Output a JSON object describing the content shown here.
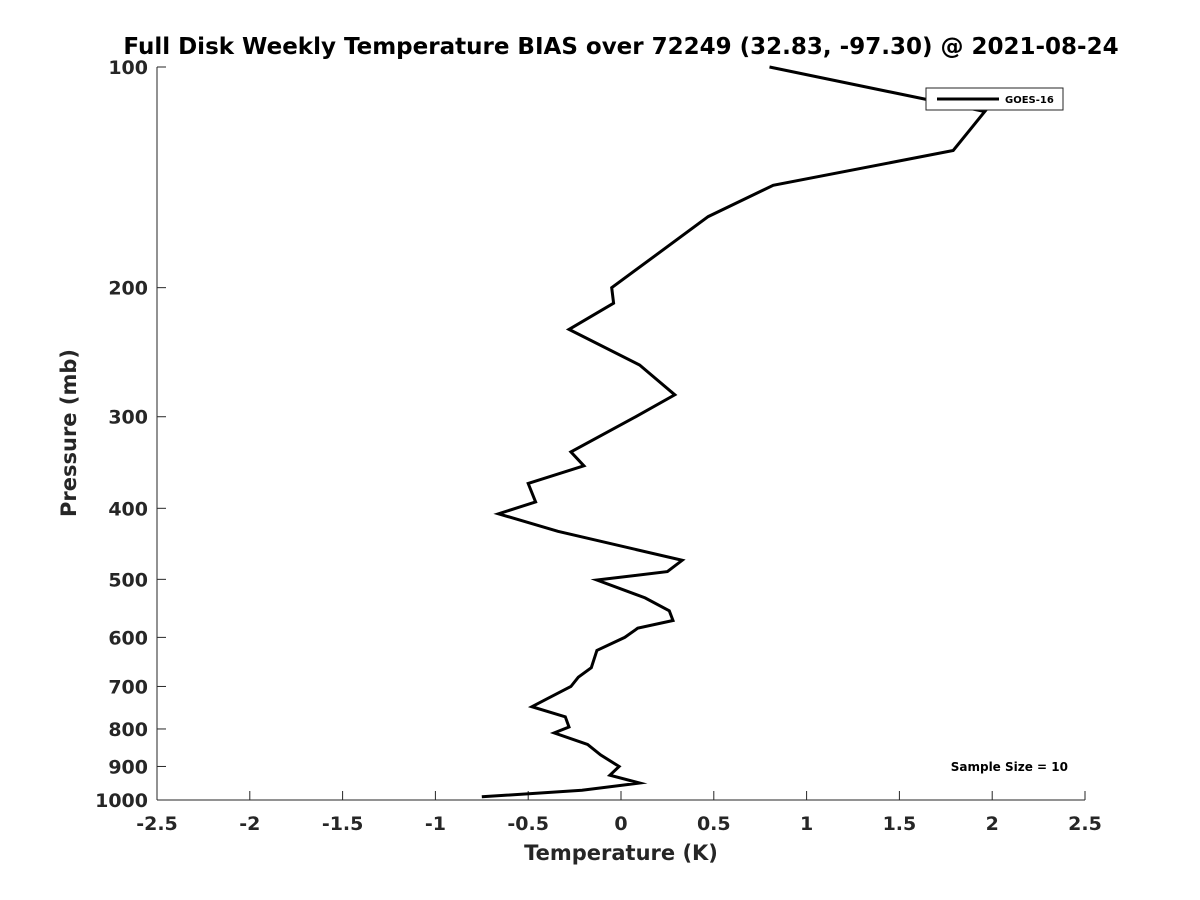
{
  "chart_data": {
    "type": "line",
    "title": "Full Disk Weekly Temperature BIAS over 72249 (32.83, -97.30) @ 2021-08-24",
    "xlabel": "Temperature (K)",
    "ylabel": "Pressure (mb)",
    "xlim": [
      -2.5,
      2.5
    ],
    "ylim": [
      100,
      1000
    ],
    "y_scale": "log",
    "y_reversed": true,
    "xticks": [
      "-2.5",
      "-2",
      "-1.5",
      "-1",
      "-0.5",
      "0",
      "0.5",
      "1",
      "1.5",
      "2",
      "2.5"
    ],
    "yticks": [
      "100",
      "200",
      "300",
      "400",
      "500",
      "600",
      "700",
      "800",
      "900",
      "1000"
    ],
    "grid": false,
    "legend_position": "top-right",
    "annotation": "Sample Size = 10",
    "color": "#000000",
    "series": [
      {
        "name": "GOES-16",
        "x": [
          0.8,
          1.96,
          1.79,
          0.82,
          0.47,
          -0.05,
          -0.04,
          -0.28,
          0.1,
          0.29,
          0.08,
          -0.27,
          -0.2,
          -0.5,
          -0.46,
          -0.66,
          -0.34,
          0.33,
          0.25,
          -0.13,
          0.13,
          0.26,
          0.28,
          0.09,
          0.02,
          -0.13,
          -0.16,
          -0.23,
          -0.27,
          -0.4,
          -0.48,
          -0.3,
          -0.28,
          -0.36,
          -0.18,
          -0.11,
          -0.01,
          -0.06,
          0.1,
          -0.21,
          -0.75
        ],
        "y": [
          100,
          115,
          130,
          145,
          160,
          200,
          210,
          228,
          255,
          280,
          300,
          335,
          350,
          370,
          392,
          407,
          430,
          471,
          488,
          501,
          530,
          552,
          569,
          583,
          600,
          625,
          660,
          680,
          700,
          728,
          746,
          770,
          795,
          810,
          840,
          868,
          900,
          925,
          948,
          970,
          990
        ]
      }
    ]
  }
}
